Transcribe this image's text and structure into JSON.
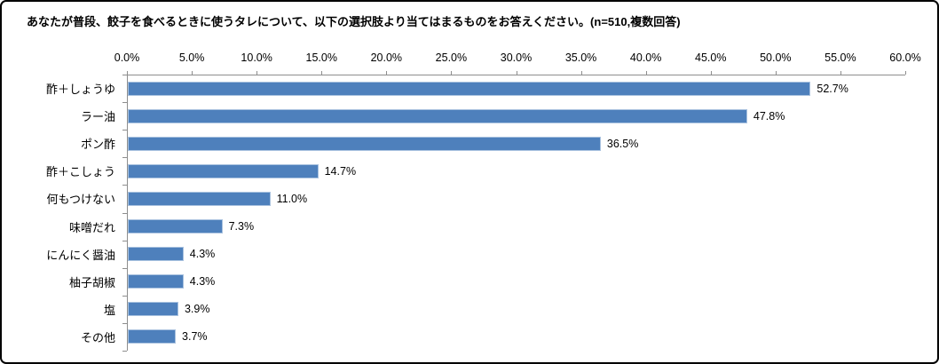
{
  "title": "あなたが普段、餃子を食べるときに使うタレについて、以下の選択肢より当てはまるものをお答えください。(n=510,複数回答)",
  "chart_data": {
    "type": "bar",
    "orientation": "horizontal",
    "title": "あなたが普段、餃子を食べるときに使うタレについて、以下の選択肢より当てはまるものをお答えください。(n=510,複数回答)",
    "categories": [
      "酢＋しょうゆ",
      "ラー油",
      "ポン酢",
      "酢＋こしょう",
      "何もつけない",
      "味噌だれ",
      "にんにく醤油",
      "柚子胡椒",
      "塩",
      "その他"
    ],
    "values": [
      52.7,
      47.8,
      36.5,
      14.7,
      11.0,
      7.3,
      4.3,
      4.3,
      3.9,
      3.7
    ],
    "value_labels": [
      "52.7%",
      "47.8%",
      "36.5%",
      "14.7%",
      "11.0%",
      "7.3%",
      "4.3%",
      "4.3%",
      "3.9%",
      "3.7%"
    ],
    "xlim": [
      0,
      60
    ],
    "x_tick_labels": [
      "0.0%",
      "5.0%",
      "10.0%",
      "15.0%",
      "20.0%",
      "25.0%",
      "30.0%",
      "35.0%",
      "40.0%",
      "45.0%",
      "50.0%",
      "55.0%",
      "60.0%"
    ],
    "grid": false,
    "legend": "none",
    "bar_color": "#4E80BC",
    "bar_border_color": "#A9C2DF",
    "axis_color": "#8E8E8E",
    "text_color": "#000000",
    "frame_border_color": "#000000",
    "background_color": "#FFFFFF"
  }
}
